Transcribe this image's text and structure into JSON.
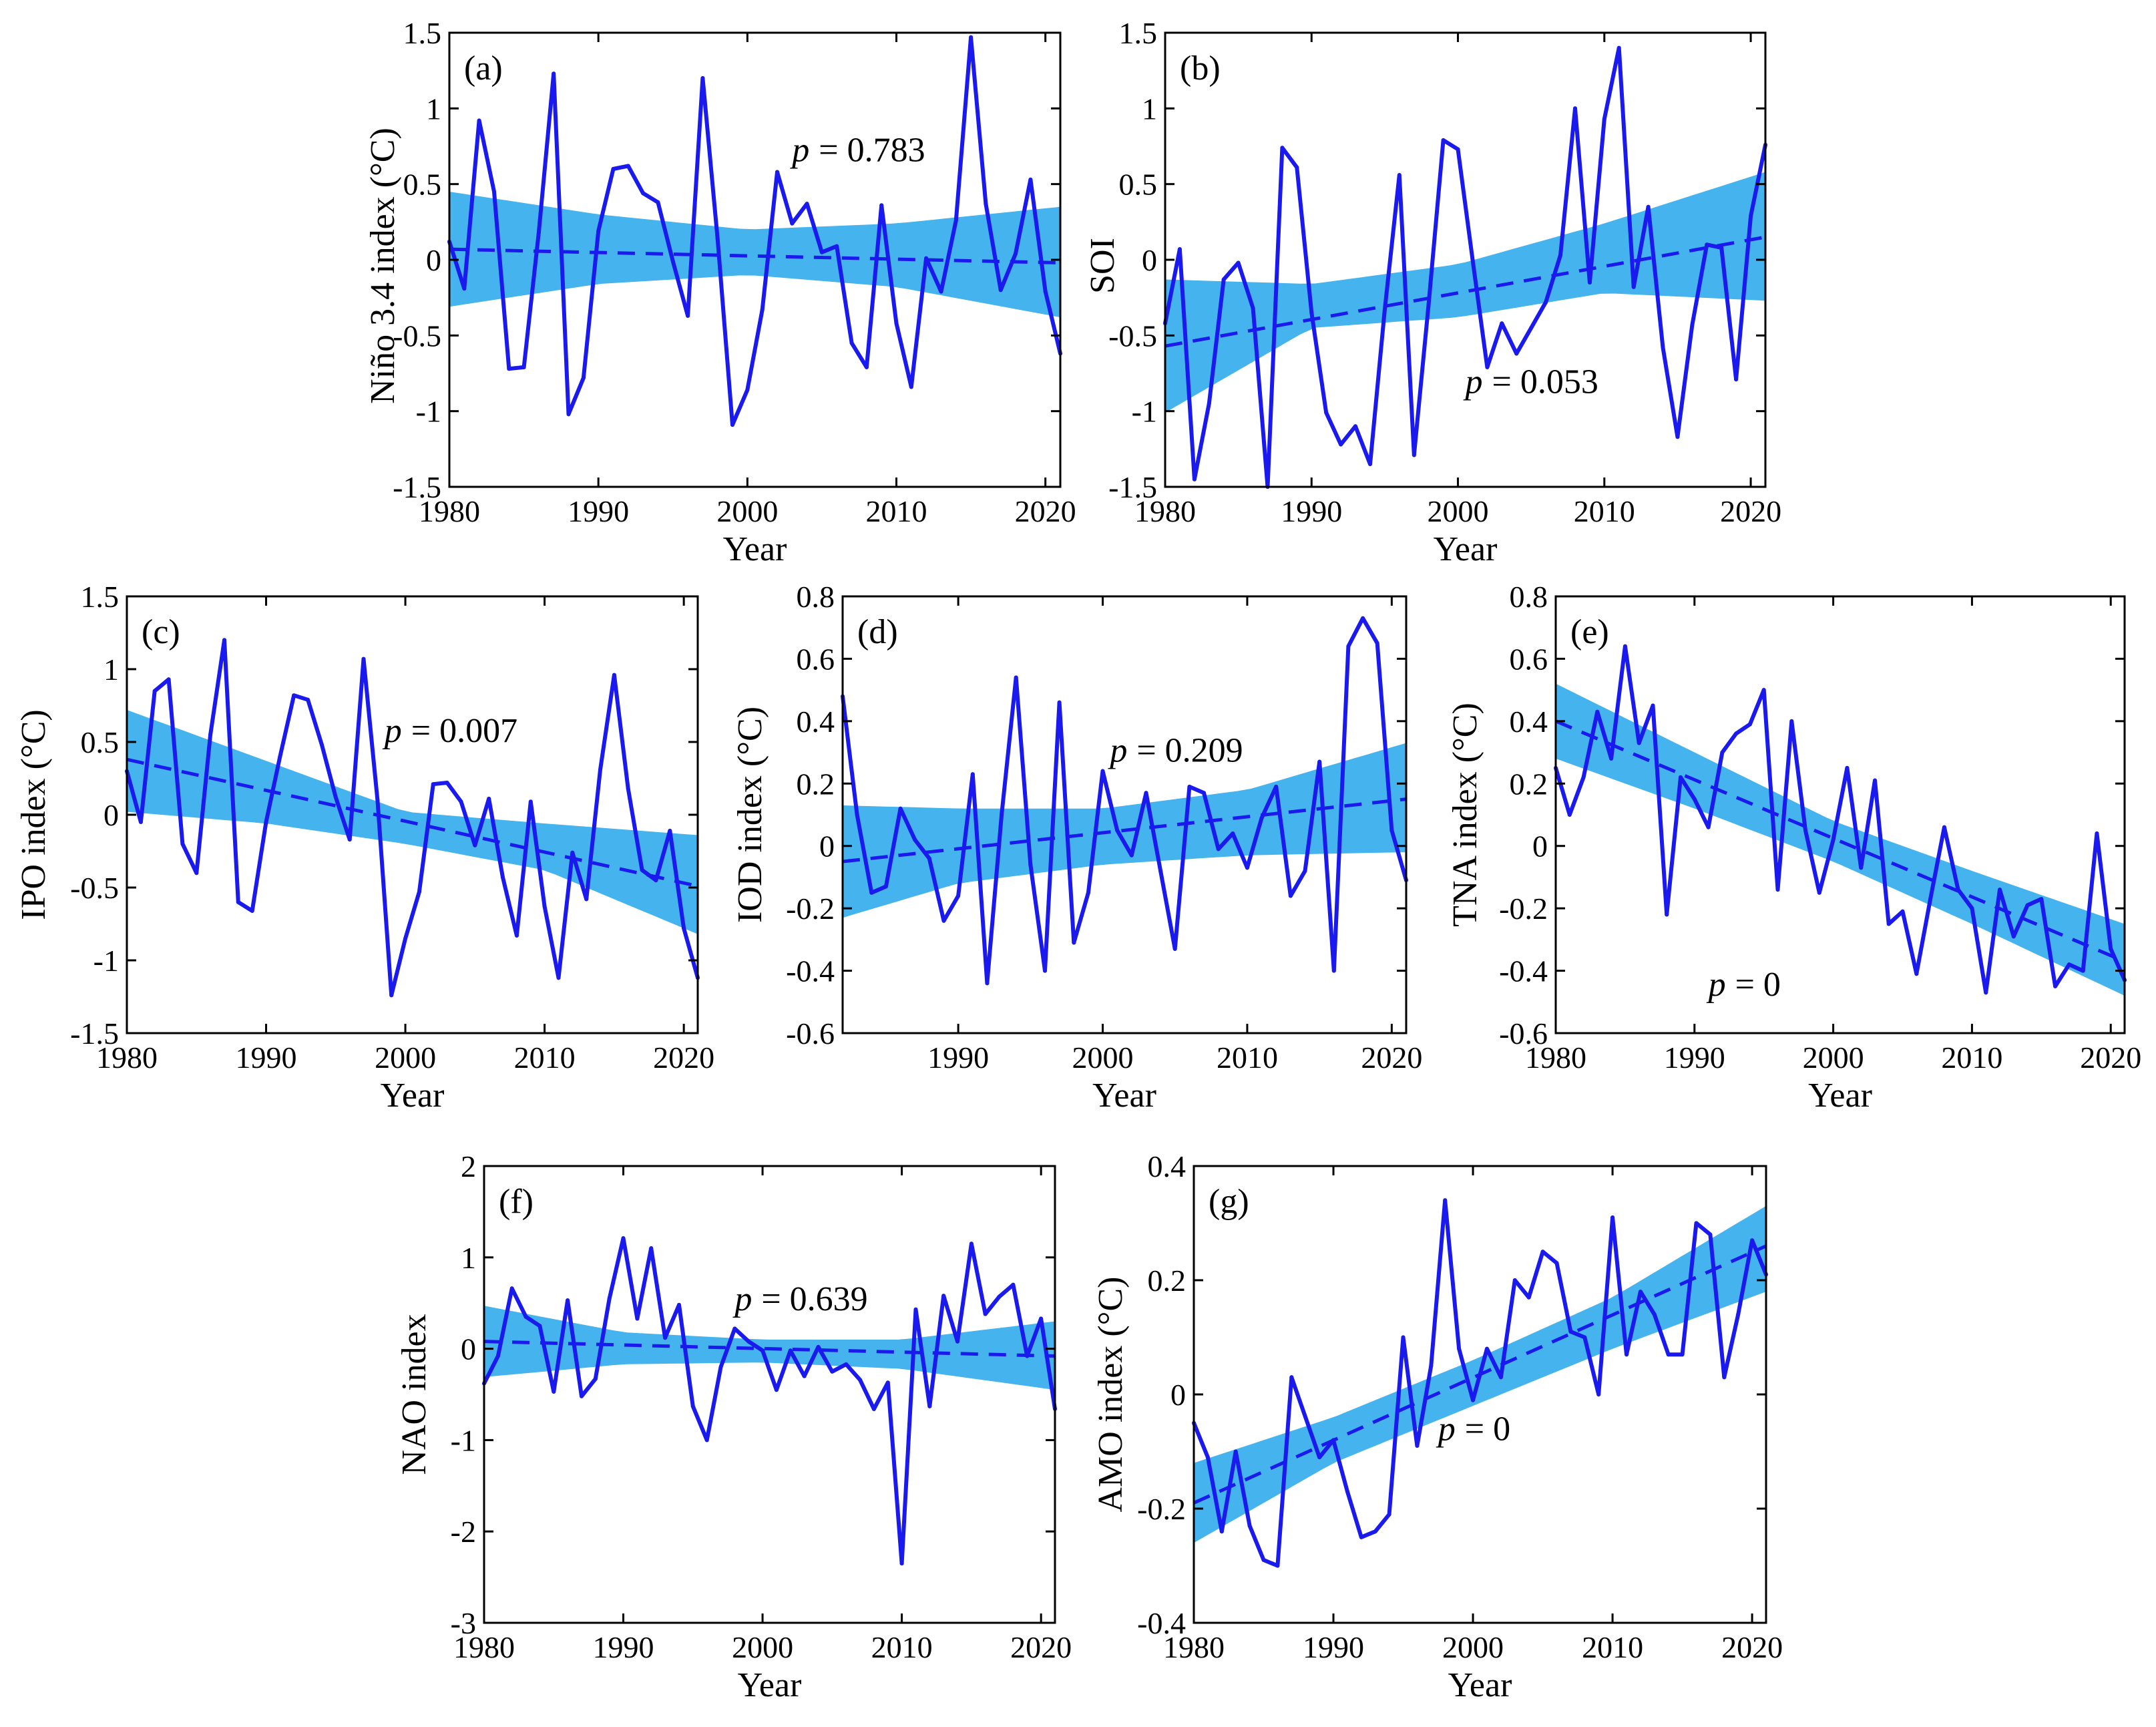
{
  "figure": {
    "xlabel": "Year",
    "p_symbol": "p",
    "colors": {
      "line": "#1a1aee",
      "band": "#45b3ee",
      "frame": "#000000"
    }
  },
  "chart_data": [
    {
      "type": "line",
      "panel": "(a)",
      "ylabel": "Niño 3.4 index (°C)",
      "xlabel": "Year",
      "xlim": [
        1980,
        2021
      ],
      "ylim": [
        -1.5,
        1.5
      ],
      "xticks": [
        "1980",
        "1990",
        "2000",
        "2010",
        "2020"
      ],
      "yticks": [
        "-1.5",
        "-1",
        "-0.5",
        "0",
        "0.5",
        "1",
        "1.5"
      ],
      "x": [
        1980,
        1981,
        1982,
        1983,
        1984,
        1985,
        1986,
        1987,
        1988,
        1989,
        1990,
        1991,
        1992,
        1993,
        1994,
        1995,
        1996,
        1997,
        1998,
        1999,
        2000,
        2001,
        2002,
        2003,
        2004,
        2005,
        2006,
        2007,
        2008,
        2009,
        2010,
        2011,
        2012,
        2013,
        2014,
        2015,
        2016,
        2017,
        2018,
        2019,
        2020,
        2021
      ],
      "values": [
        0.12,
        -0.19,
        0.92,
        0.45,
        -0.72,
        -0.71,
        0.18,
        1.23,
        -1.02,
        -0.78,
        0.19,
        0.6,
        0.62,
        0.44,
        0.38,
        -0.01,
        -0.37,
        1.2,
        0.14,
        -1.09,
        -0.86,
        -0.33,
        0.58,
        0.24,
        0.37,
        0.05,
        0.09,
        -0.55,
        -0.71,
        0.36,
        -0.42,
        -0.84,
        0.01,
        -0.21,
        0.26,
        1.47,
        0.37,
        -0.2,
        0.04,
        0.53,
        -0.21,
        -0.62
      ],
      "trend": {
        "start": 0.07,
        "end": -0.02
      },
      "band": {
        "x": [
          1980,
          1990,
          2000,
          2010,
          2021
        ],
        "lower": [
          -0.31,
          -0.16,
          -0.1,
          -0.18,
          -0.38
        ],
        "upper": [
          0.45,
          0.3,
          0.2,
          0.24,
          0.35
        ]
      },
      "p_value": "= 0.783",
      "p_pos": [
        2003,
        0.65
      ]
    },
    {
      "type": "line",
      "panel": "(b)",
      "ylabel": "SOI",
      "xlabel": "Year",
      "xlim": [
        1980,
        2021
      ],
      "ylim": [
        -1.5,
        1.5
      ],
      "xticks": [
        "1980",
        "1990",
        "2000",
        "2010",
        "2020"
      ],
      "yticks": [
        "-1.5",
        "-1",
        "-0.5",
        "0",
        "0.5",
        "1",
        "1.5"
      ],
      "x": [
        1980,
        1981,
        1982,
        1983,
        1984,
        1985,
        1986,
        1987,
        1988,
        1989,
        1990,
        1991,
        1992,
        1993,
        1994,
        1995,
        1996,
        1997,
        1998,
        1999,
        2000,
        2001,
        2002,
        2003,
        2004,
        2005,
        2006,
        2007,
        2008,
        2009,
        2010,
        2011,
        2012,
        2013,
        2014,
        2015,
        2016,
        2017,
        2018,
        2019,
        2020,
        2021
      ],
      "values": [
        -0.42,
        0.07,
        -1.45,
        -0.95,
        -0.13,
        -0.02,
        -0.32,
        -1.5,
        0.74,
        0.61,
        -0.35,
        -1.01,
        -1.22,
        -1.1,
        -1.35,
        -0.33,
        0.56,
        -1.29,
        -0.29,
        0.79,
        0.73,
        0.0,
        -0.71,
        -0.42,
        -0.62,
        -0.45,
        -0.28,
        0.03,
        1.0,
        -0.15,
        0.93,
        1.4,
        -0.18,
        0.35,
        -0.58,
        -1.17,
        -0.43,
        0.1,
        0.08,
        -0.79,
        0.29,
        0.76
      ],
      "trend": {
        "start": -0.57,
        "end": 0.15
      },
      "band": {
        "x": [
          1980,
          1990,
          2000,
          2010,
          2021
        ],
        "lower": [
          -1.01,
          -0.45,
          -0.38,
          -0.22,
          -0.27
        ],
        "upper": [
          -0.13,
          -0.16,
          -0.03,
          0.24,
          0.58
        ]
      },
      "p_value": "= 0.053",
      "p_pos": [
        2000.5,
        -0.88
      ]
    },
    {
      "type": "line",
      "panel": "(c)",
      "ylabel": "IPO index (°C)",
      "xlabel": "Year",
      "xlim": [
        1980,
        2021
      ],
      "ylim": [
        -1.5,
        1.5
      ],
      "xticks": [
        "1980",
        "1990",
        "2000",
        "2010",
        "2020"
      ],
      "yticks": [
        "-1.5",
        "-1",
        "-0.5",
        "0",
        "0.5",
        "1",
        "1.5"
      ],
      "x": [
        1980,
        1981,
        1982,
        1983,
        1984,
        1985,
        1986,
        1987,
        1988,
        1989,
        1990,
        1991,
        1992,
        1993,
        1994,
        1995,
        1996,
        1997,
        1998,
        1999,
        2000,
        2001,
        2002,
        2003,
        2004,
        2005,
        2006,
        2007,
        2008,
        2009,
        2010,
        2011,
        2012,
        2013,
        2014,
        2015,
        2016,
        2017,
        2018,
        2019,
        2020,
        2021
      ],
      "values": [
        0.3,
        -0.05,
        0.85,
        0.93,
        -0.2,
        -0.4,
        0.55,
        1.2,
        -0.6,
        -0.66,
        -0.05,
        0.4,
        0.82,
        0.79,
        0.48,
        0.12,
        -0.17,
        1.07,
        0.1,
        -1.24,
        -0.85,
        -0.53,
        0.21,
        0.22,
        0.09,
        -0.21,
        0.11,
        -0.43,
        -0.83,
        0.09,
        -0.63,
        -1.12,
        -0.26,
        -0.58,
        0.31,
        0.96,
        0.18,
        -0.38,
        -0.45,
        -0.11,
        -0.78,
        -1.12
      ],
      "trend": {
        "start": 0.38,
        "end": -0.49
      },
      "band": {
        "x": [
          1980,
          1990,
          2000,
          2010,
          2021
        ],
        "lower": [
          0.02,
          -0.06,
          -0.2,
          -0.38,
          -0.82
        ],
        "upper": [
          0.72,
          0.37,
          0.02,
          -0.06,
          -0.14
        ]
      },
      "p_value": "= 0.007",
      "p_pos": [
        1998.5,
        0.5
      ]
    },
    {
      "type": "line",
      "panel": "(d)",
      "ylabel": "IOD index (°C)",
      "xlabel": "Year",
      "xlim": [
        1982,
        2021
      ],
      "ylim": [
        -0.6,
        0.8
      ],
      "xticks": [
        "1990",
        "2000",
        "2010",
        "2020"
      ],
      "yticks": [
        "-0.6",
        "-0.4",
        "-0.2",
        "0",
        "0.2",
        "0.4",
        "0.6",
        "0.8"
      ],
      "x": [
        1982,
        1983,
        1984,
        1985,
        1986,
        1987,
        1988,
        1989,
        1990,
        1991,
        1992,
        1993,
        1994,
        1995,
        1996,
        1997,
        1998,
        1999,
        2000,
        2001,
        2002,
        2003,
        2004,
        2005,
        2006,
        2007,
        2008,
        2009,
        2010,
        2011,
        2012,
        2013,
        2014,
        2015,
        2016,
        2017,
        2018,
        2019,
        2020,
        2021
      ],
      "values": [
        0.48,
        0.1,
        -0.15,
        -0.13,
        0.12,
        0.02,
        -0.04,
        -0.24,
        -0.16,
        0.23,
        -0.44,
        0.1,
        0.54,
        -0.06,
        -0.4,
        0.46,
        -0.31,
        -0.15,
        0.24,
        0.05,
        -0.03,
        0.17,
        -0.08,
        -0.33,
        0.19,
        0.17,
        -0.01,
        0.04,
        -0.07,
        0.09,
        0.19,
        -0.16,
        -0.08,
        0.27,
        -0.4,
        0.64,
        0.73,
        0.65,
        0.05,
        -0.11
      ],
      "trend": {
        "start": -0.05,
        "end": 0.15
      },
      "band": {
        "x": [
          1982,
          1990,
          2000,
          2010,
          2021
        ],
        "lower": [
          -0.23,
          -0.12,
          -0.06,
          -0.03,
          -0.02
        ],
        "upper": [
          0.13,
          0.12,
          0.12,
          0.18,
          0.33
        ]
      },
      "p_value": "= 0.209",
      "p_pos": [
        2000.5,
        0.27
      ]
    },
    {
      "type": "line",
      "panel": "(e)",
      "ylabel": "TNA index (°C)",
      "xlabel": "Year",
      "xlim": [
        1980,
        2021
      ],
      "ylim": [
        -0.6,
        0.8
      ],
      "xticks": [
        "1980",
        "1990",
        "2000",
        "2010",
        "2020"
      ],
      "yticks": [
        "-0.6",
        "-0.4",
        "-0.2",
        "0",
        "0.2",
        "0.4",
        "0.6",
        "0.8"
      ],
      "x": [
        1980,
        1981,
        1982,
        1983,
        1984,
        1985,
        1986,
        1987,
        1988,
        1989,
        1990,
        1991,
        1992,
        1993,
        1994,
        1995,
        1996,
        1997,
        1998,
        1999,
        2000,
        2001,
        2002,
        2003,
        2004,
        2005,
        2006,
        2007,
        2008,
        2009,
        2010,
        2011,
        2012,
        2013,
        2014,
        2015,
        2016,
        2017,
        2018,
        2019,
        2020,
        2021
      ],
      "values": [
        0.25,
        0.1,
        0.22,
        0.43,
        0.28,
        0.64,
        0.33,
        0.45,
        -0.22,
        0.22,
        0.15,
        0.06,
        0.3,
        0.36,
        0.39,
        0.5,
        -0.14,
        0.4,
        0.05,
        -0.15,
        0.02,
        0.25,
        -0.07,
        0.21,
        -0.25,
        -0.21,
        -0.41,
        -0.17,
        0.06,
        -0.14,
        -0.2,
        -0.47,
        -0.14,
        -0.29,
        -0.19,
        -0.17,
        -0.45,
        -0.38,
        -0.4,
        0.04,
        -0.33,
        -0.43
      ],
      "trend": {
        "start": 0.4,
        "end": -0.37
      },
      "band": {
        "x": [
          1980,
          1990,
          2000,
          2010,
          2021
        ],
        "lower": [
          0.28,
          0.12,
          -0.05,
          -0.25,
          -0.48
        ],
        "upper": [
          0.52,
          0.3,
          0.08,
          -0.08,
          -0.25
        ]
      },
      "p_value": "= 0",
      "p_pos": [
        1991,
        -0.48
      ]
    },
    {
      "type": "line",
      "panel": "(f)",
      "ylabel": "NAO index",
      "xlabel": "Year",
      "xlim": [
        1980,
        2021
      ],
      "ylim": [
        -3,
        2
      ],
      "xticks": [
        "1980",
        "1990",
        "2000",
        "2010",
        "2020"
      ],
      "yticks": [
        "-3",
        "-2",
        "-1",
        "0",
        "1",
        "2"
      ],
      "x": [
        1980,
        1981,
        1982,
        1983,
        1984,
        1985,
        1986,
        1987,
        1988,
        1989,
        1990,
        1991,
        1992,
        1993,
        1994,
        1995,
        1996,
        1997,
        1998,
        1999,
        2000,
        2001,
        2002,
        2003,
        2004,
        2005,
        2006,
        2007,
        2008,
        2009,
        2010,
        2011,
        2012,
        2013,
        2014,
        2015,
        2016,
        2017,
        2018,
        2019,
        2020,
        2021
      ],
      "values": [
        -0.38,
        -0.08,
        0.66,
        0.35,
        0.25,
        -0.47,
        0.53,
        -0.52,
        -0.33,
        0.55,
        1.21,
        0.33,
        1.1,
        0.12,
        0.48,
        -0.63,
        -1.0,
        -0.2,
        0.22,
        0.08,
        -0.02,
        -0.45,
        -0.02,
        -0.3,
        0.02,
        -0.25,
        -0.17,
        -0.34,
        -0.66,
        -0.37,
        -2.35,
        0.43,
        -0.63,
        0.58,
        0.08,
        1.15,
        0.38,
        0.57,
        0.7,
        -0.08,
        0.33,
        -0.66
      ],
      "trend": {
        "start": 0.08,
        "end": -0.08
      },
      "band": {
        "x": [
          1980,
          1990,
          2000,
          2010,
          2021
        ],
        "lower": [
          -0.31,
          -0.17,
          -0.15,
          -0.22,
          -0.45
        ],
        "upper": [
          0.47,
          0.18,
          0.1,
          0.1,
          0.3
        ]
      },
      "p_value": "= 0.639",
      "p_pos": [
        1998,
        0.42
      ]
    },
    {
      "type": "line",
      "panel": "(g)",
      "ylabel": "AMO index (°C)",
      "xlabel": "Year",
      "xlim": [
        1980,
        2021
      ],
      "ylim": [
        -0.4,
        0.4
      ],
      "xticks": [
        "1980",
        "1990",
        "2000",
        "2010",
        "2020"
      ],
      "yticks": [
        "-0.4",
        "-0.2",
        "0",
        "0.2",
        "0.4"
      ],
      "x": [
        1980,
        1981,
        1982,
        1983,
        1984,
        1985,
        1986,
        1987,
        1988,
        1989,
        1990,
        1991,
        1992,
        1993,
        1994,
        1995,
        1996,
        1997,
        1998,
        1999,
        2000,
        2001,
        2002,
        2003,
        2004,
        2005,
        2006,
        2007,
        2008,
        2009,
        2010,
        2011,
        2012,
        2013,
        2014,
        2015,
        2016,
        2017,
        2018,
        2019,
        2020,
        2021
      ],
      "values": [
        -0.05,
        -0.11,
        -0.24,
        -0.1,
        -0.23,
        -0.29,
        -0.3,
        0.03,
        -0.04,
        -0.11,
        -0.08,
        -0.17,
        -0.25,
        -0.24,
        -0.21,
        0.1,
        -0.09,
        0.05,
        0.34,
        0.08,
        -0.01,
        0.08,
        0.03,
        0.2,
        0.17,
        0.25,
        0.23,
        0.11,
        0.1,
        0.0,
        0.31,
        0.07,
        0.18,
        0.14,
        0.07,
        0.07,
        0.3,
        0.28,
        0.03,
        0.14,
        0.27,
        0.21
      ],
      "trend": {
        "start": -0.19,
        "end": 0.26
      },
      "band": {
        "x": [
          1980,
          1990,
          2000,
          2010,
          2021
        ],
        "lower": [
          -0.26,
          -0.12,
          -0.02,
          0.08,
          0.18
        ],
        "upper": [
          -0.12,
          -0.04,
          0.06,
          0.17,
          0.33
        ]
      },
      "p_value": "= 0",
      "p_pos": [
        1997.5,
        -0.08
      ]
    }
  ]
}
